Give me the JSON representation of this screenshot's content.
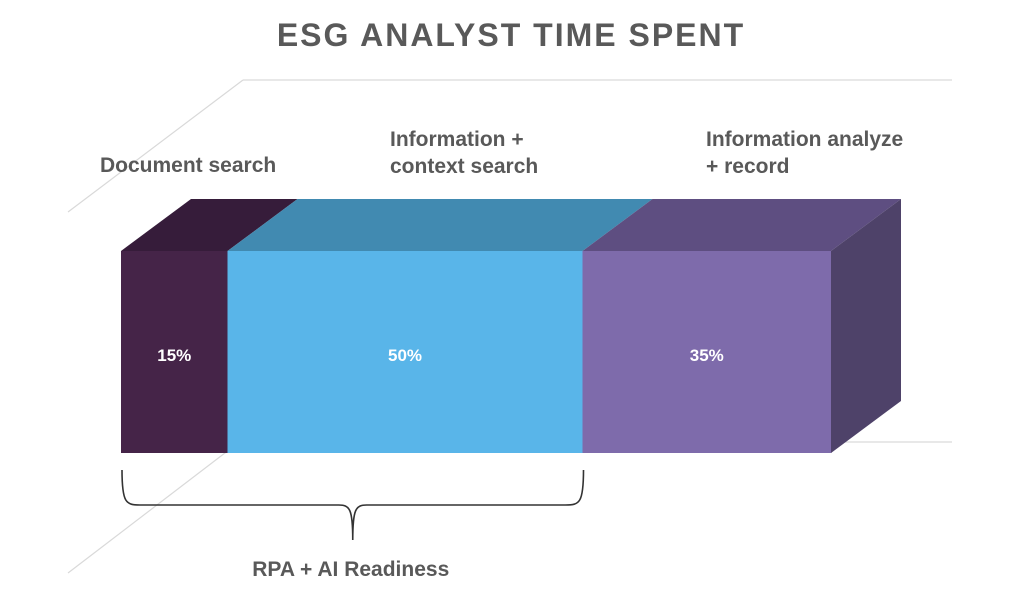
{
  "chart_data": {
    "type": "bar",
    "title": "ESG ANALYST TIME SPENT",
    "layout": "100% stacked horizontal bar (3D)",
    "series": [
      {
        "name": "Document search",
        "label_lines": [
          "Document search"
        ],
        "value": 15,
        "value_label": "15%",
        "front": "#452448",
        "top": "#361c3a",
        "side": "#361c3a"
      },
      {
        "name": "Information + context search",
        "label_lines": [
          "Information +",
          "context search"
        ],
        "value": 50,
        "value_label": "50%",
        "front": "#59b5e9",
        "top": "#418ab1",
        "side": "#418ab1"
      },
      {
        "name": "Information analyze + record",
        "label_lines": [
          "Information analyze",
          "+ record"
        ],
        "value": 35,
        "value_label": "35%",
        "front": "#7e6bab",
        "top": "#5e4e81",
        "side": "#4e4269"
      }
    ],
    "bracket": {
      "label": "RPA + AI Readiness",
      "spans": [
        "Document search",
        "Information + context search"
      ]
    },
    "colors": {
      "text": "#595959",
      "value_text": "#ffffff",
      "grid": "#d9d9d9"
    },
    "total": 100
  }
}
